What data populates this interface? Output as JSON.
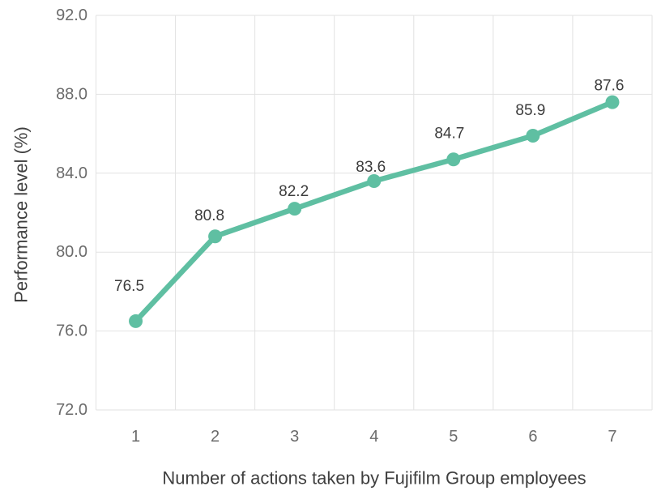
{
  "chart_data": {
    "type": "line",
    "categories": [
      "1",
      "2",
      "3",
      "4",
      "5",
      "6",
      "7"
    ],
    "values": [
      76.5,
      80.8,
      82.2,
      83.6,
      84.7,
      85.9,
      87.6
    ],
    "data_labels": [
      "76.5",
      "80.8",
      "82.2",
      "83.6",
      "84.7",
      "85.9",
      "87.6"
    ],
    "title": "",
    "xlabel": "Number of actions taken by Fujifilm Group employees",
    "ylabel": "Performance level (%)",
    "ylim": [
      72,
      92
    ],
    "yticks": [
      72,
      76,
      80,
      84,
      88,
      92
    ],
    "ytick_labels": [
      "72.0",
      "76.0",
      "80.0",
      "84.0",
      "88.0",
      "92.0"
    ],
    "grid": true,
    "legend": false,
    "marker": "circle",
    "colors": {
      "line": "#5fbfa2",
      "marker": "#5fbfa2",
      "grid": "#e2e2e2",
      "tick_text": "#6b6b6b",
      "label_text": "#3c3c3c",
      "background": "#ffffff"
    }
  }
}
